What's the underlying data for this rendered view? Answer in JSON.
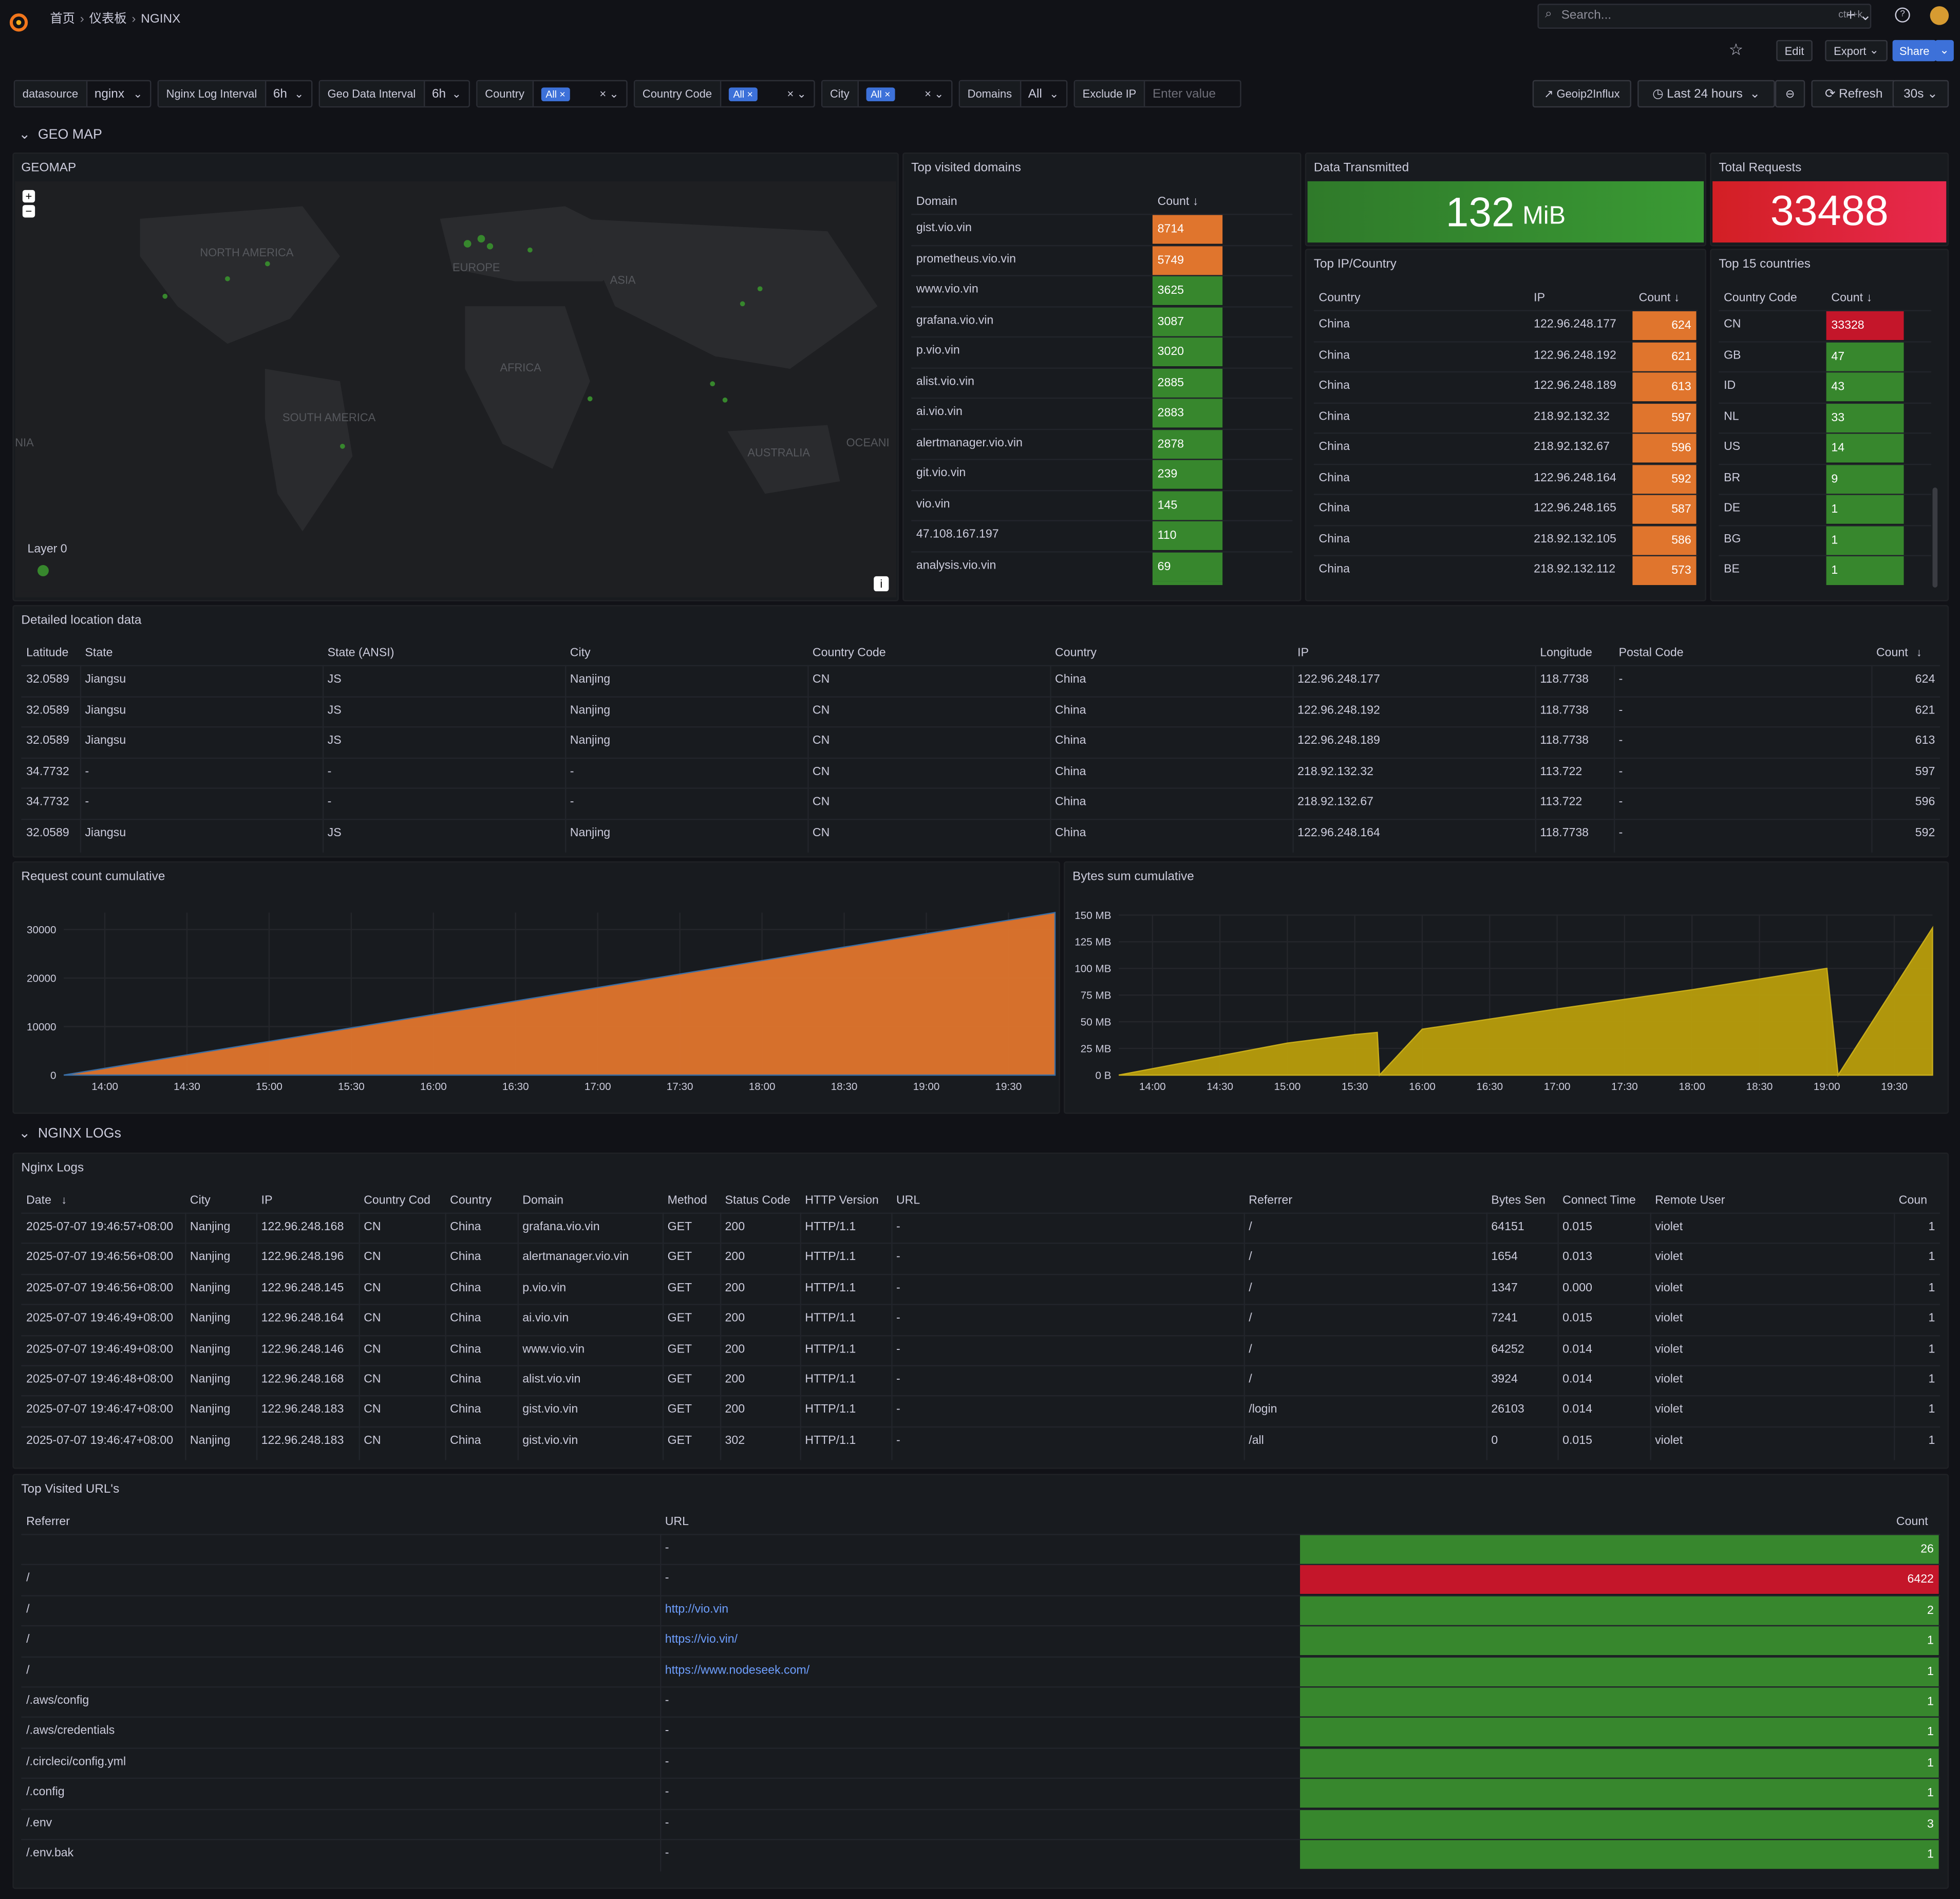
{
  "nav": {
    "crumbs": [
      "首页",
      "仪表板",
      "NGINX"
    ],
    "search_placeholder": "Search...",
    "search_shortcut": "ctrl+k",
    "edit": "Edit",
    "export": "Export",
    "share": "Share"
  },
  "vars": {
    "datasource_label": "datasource",
    "datasource_value": "nginx",
    "log_interval_label": "Nginx Log Interval",
    "log_interval_value": "6h",
    "geo_interval_label": "Geo Data Interval",
    "geo_interval_value": "6h",
    "country_label": "Country",
    "country_value": "All",
    "country_code_label": "Country Code",
    "country_code_value": "All",
    "city_label": "City",
    "city_value": "All",
    "domains_label": "Domains",
    "domains_value": "All",
    "exclude_ip_label": "Exclude IP",
    "exclude_ip_placeholder": "Enter value",
    "geoip_link": "Geoip2Influx",
    "time_range": "Last 24 hours",
    "refresh": "Refresh",
    "refresh_interval": "30s"
  },
  "rows": {
    "geo": "GEO MAP",
    "logs": "NGINX LOGs"
  },
  "geomap": {
    "title": "GEOMAP",
    "labels": [
      "NORTH AMERICA",
      "EUROPE",
      "ASIA",
      "AFRICA",
      "SOUTH AMERICA",
      "AUSTRALIA",
      "OCEANI",
      "NIA"
    ],
    "layer": "Layer 0",
    "zoom_in": "+",
    "zoom_out": "−",
    "info": "i"
  },
  "domains": {
    "title": "Top visited domains",
    "col_domain": "Domain",
    "col_count": "Count",
    "rows": [
      {
        "domain": "gist.vio.vin",
        "count": "8714",
        "color": "#e0752d"
      },
      {
        "domain": "prometheus.vio.vin",
        "count": "5749",
        "color": "#e0752d"
      },
      {
        "domain": "www.vio.vin",
        "count": "3625",
        "color": "#37872d"
      },
      {
        "domain": "grafana.vio.vin",
        "count": "3087",
        "color": "#37872d"
      },
      {
        "domain": "p.vio.vin",
        "count": "3020",
        "color": "#37872d"
      },
      {
        "domain": "alist.vio.vin",
        "count": "2885",
        "color": "#37872d"
      },
      {
        "domain": "ai.vio.vin",
        "count": "2883",
        "color": "#37872d"
      },
      {
        "domain": "alertmanager.vio.vin",
        "count": "2878",
        "color": "#37872d"
      },
      {
        "domain": "git.vio.vin",
        "count": "239",
        "color": "#37872d"
      },
      {
        "domain": "vio.vin",
        "count": "145",
        "color": "#37872d"
      },
      {
        "domain": "47.108.167.197",
        "count": "110",
        "color": "#37872d"
      },
      {
        "domain": "analysis.vio.vin",
        "count": "69",
        "color": "#37872d"
      }
    ]
  },
  "stats": {
    "data_title": "Data Transmitted",
    "data_value": "132",
    "data_unit": "MiB",
    "req_title": "Total Requests",
    "req_value": "33488"
  },
  "top_ip": {
    "title": "Top IP/Country",
    "col_country": "Country",
    "col_ip": "IP",
    "col_count": "Count",
    "rows": [
      {
        "country": "China",
        "ip": "122.96.248.177",
        "count": "624"
      },
      {
        "country": "China",
        "ip": "122.96.248.192",
        "count": "621"
      },
      {
        "country": "China",
        "ip": "122.96.248.189",
        "count": "613"
      },
      {
        "country": "China",
        "ip": "218.92.132.32",
        "count": "597"
      },
      {
        "country": "China",
        "ip": "218.92.132.67",
        "count": "596"
      },
      {
        "country": "China",
        "ip": "122.96.248.164",
        "count": "592"
      },
      {
        "country": "China",
        "ip": "122.96.248.165",
        "count": "587"
      },
      {
        "country": "China",
        "ip": "218.92.132.105",
        "count": "586"
      },
      {
        "country": "China",
        "ip": "218.92.132.112",
        "count": "573"
      }
    ]
  },
  "top_countries": {
    "title": "Top 15 countries",
    "col_code": "Country Code",
    "col_count": "Count",
    "rows": [
      {
        "code": "CN",
        "count": "33328",
        "color": "#c4162a"
      },
      {
        "code": "GB",
        "count": "47",
        "color": "#37872d"
      },
      {
        "code": "ID",
        "count": "43",
        "color": "#37872d"
      },
      {
        "code": "NL",
        "count": "33",
        "color": "#37872d"
      },
      {
        "code": "US",
        "count": "14",
        "color": "#37872d"
      },
      {
        "code": "BR",
        "count": "9",
        "color": "#37872d"
      },
      {
        "code": "DE",
        "count": "1",
        "color": "#37872d"
      },
      {
        "code": "BG",
        "count": "1",
        "color": "#37872d"
      },
      {
        "code": "BE",
        "count": "1",
        "color": "#37872d"
      }
    ]
  },
  "location": {
    "title": "Detailed location data",
    "cols": [
      "Latitude",
      "State",
      "State (ANSI)",
      "City",
      "Country Code",
      "Country",
      "IP",
      "Longitude",
      "Postal Code",
      "Count"
    ],
    "rows": [
      [
        "32.0589",
        "Jiangsu",
        "JS",
        "Nanjing",
        "CN",
        "China",
        "122.96.248.177",
        "118.7738",
        "-",
        "624"
      ],
      [
        "32.0589",
        "Jiangsu",
        "JS",
        "Nanjing",
        "CN",
        "China",
        "122.96.248.192",
        "118.7738",
        "-",
        "621"
      ],
      [
        "32.0589",
        "Jiangsu",
        "JS",
        "Nanjing",
        "CN",
        "China",
        "122.96.248.189",
        "118.7738",
        "-",
        "613"
      ],
      [
        "34.7732",
        "-",
        "-",
        "-",
        "CN",
        "China",
        "218.92.132.32",
        "113.722",
        "-",
        "597"
      ],
      [
        "34.7732",
        "-",
        "-",
        "-",
        "CN",
        "China",
        "218.92.132.67",
        "113.722",
        "-",
        "596"
      ],
      [
        "32.0589",
        "Jiangsu",
        "JS",
        "Nanjing",
        "CN",
        "China",
        "122.96.248.164",
        "118.7738",
        "-",
        "592"
      ]
    ]
  },
  "chart_data": [
    {
      "type": "area",
      "title": "Request count cumulative",
      "x_ticks": [
        "14:00",
        "14:30",
        "15:00",
        "15:30",
        "16:00",
        "16:30",
        "17:00",
        "17:30",
        "18:00",
        "18:30",
        "19:00",
        "19:30"
      ],
      "y_ticks": [
        "0",
        "10000",
        "20000",
        "30000"
      ],
      "ylim": [
        0,
        33488
      ],
      "series": [
        {
          "x": [
            "13:45",
            "19:47"
          ],
          "values": [
            0,
            33488
          ],
          "color": "#e0752d"
        }
      ]
    },
    {
      "type": "area",
      "title": "Bytes sum cumulative",
      "x_ticks": [
        "14:00",
        "14:30",
        "15:00",
        "15:30",
        "16:00",
        "16:30",
        "17:00",
        "17:30",
        "18:00",
        "18:30",
        "19:00",
        "19:30"
      ],
      "y_ticks": [
        "0 B",
        "25 MB",
        "50 MB",
        "75 MB",
        "100 MB",
        "125 MB",
        "150 MB"
      ],
      "ylim": [
        0,
        150
      ],
      "series": [
        {
          "x": [
            "13:45",
            "14:30",
            "15:00",
            "15:30",
            "15:40",
            "15:41",
            "16:00",
            "17:00",
            "18:00",
            "19:00",
            "19:05",
            "19:47"
          ],
          "values": [
            0,
            18,
            30,
            38,
            40,
            0,
            43,
            62,
            80,
            100,
            0,
            138
          ],
          "color": "#b89d0c"
        }
      ]
    }
  ],
  "logs": {
    "title": "Nginx Logs",
    "cols": [
      "Date",
      "City",
      "IP",
      "Country Cod",
      "Country",
      "Domain",
      "Method",
      "Status Code",
      "HTTP Version",
      "URL",
      "Referrer",
      "Bytes Sen",
      "Connect Time",
      "Remote User",
      "Coun"
    ],
    "rows": [
      [
        "2025-07-07 19:46:57+08:00",
        "Nanjing",
        "122.96.248.168",
        "CN",
        "China",
        "grafana.vio.vin",
        "GET",
        "200",
        "HTTP/1.1",
        "-",
        "/",
        "64151",
        "0.015",
        "violet",
        "1"
      ],
      [
        "2025-07-07 19:46:56+08:00",
        "Nanjing",
        "122.96.248.196",
        "CN",
        "China",
        "alertmanager.vio.vin",
        "GET",
        "200",
        "HTTP/1.1",
        "-",
        "/",
        "1654",
        "0.013",
        "violet",
        "1"
      ],
      [
        "2025-07-07 19:46:56+08:00",
        "Nanjing",
        "122.96.248.145",
        "CN",
        "China",
        "p.vio.vin",
        "GET",
        "200",
        "HTTP/1.1",
        "-",
        "/",
        "1347",
        "0.000",
        "violet",
        "1"
      ],
      [
        "2025-07-07 19:46:49+08:00",
        "Nanjing",
        "122.96.248.164",
        "CN",
        "China",
        "ai.vio.vin",
        "GET",
        "200",
        "HTTP/1.1",
        "-",
        "/",
        "7241",
        "0.015",
        "violet",
        "1"
      ],
      [
        "2025-07-07 19:46:49+08:00",
        "Nanjing",
        "122.96.248.146",
        "CN",
        "China",
        "www.vio.vin",
        "GET",
        "200",
        "HTTP/1.1",
        "-",
        "/",
        "64252",
        "0.014",
        "violet",
        "1"
      ],
      [
        "2025-07-07 19:46:48+08:00",
        "Nanjing",
        "122.96.248.168",
        "CN",
        "China",
        "alist.vio.vin",
        "GET",
        "200",
        "HTTP/1.1",
        "-",
        "/",
        "3924",
        "0.014",
        "violet",
        "1"
      ],
      [
        "2025-07-07 19:46:47+08:00",
        "Nanjing",
        "122.96.248.183",
        "CN",
        "China",
        "gist.vio.vin",
        "GET",
        "200",
        "HTTP/1.1",
        "-",
        "/login",
        "26103",
        "0.014",
        "violet",
        "1"
      ],
      [
        "2025-07-07 19:46:47+08:00",
        "Nanjing",
        "122.96.248.183",
        "CN",
        "China",
        "gist.vio.vin",
        "GET",
        "302",
        "HTTP/1.1",
        "-",
        "/all",
        "0",
        "0.015",
        "violet",
        "1"
      ]
    ]
  },
  "urls": {
    "title": "Top Visited URL's",
    "col_referrer": "Referrer",
    "col_url": "URL",
    "col_count": "Count",
    "rows": [
      {
        "referrer": "",
        "url": "-",
        "count": "26",
        "color": "#37872d"
      },
      {
        "referrer": "/",
        "url": "-",
        "count": "6422",
        "color": "#c4162a"
      },
      {
        "referrer": "/",
        "url": "http://vio.vin",
        "count": "2",
        "color": "#37872d"
      },
      {
        "referrer": "/",
        "url": "https://vio.vin/",
        "count": "1",
        "color": "#37872d"
      },
      {
        "referrer": "/",
        "url": "https://www.nodeseek.com/",
        "count": "1",
        "color": "#37872d"
      },
      {
        "referrer": "/.aws/config",
        "url": "-",
        "count": "1",
        "color": "#37872d"
      },
      {
        "referrer": "/.aws/credentials",
        "url": "-",
        "count": "1",
        "color": "#37872d"
      },
      {
        "referrer": "/.circleci/config.yml",
        "url": "-",
        "count": "1",
        "color": "#37872d"
      },
      {
        "referrer": "/.config",
        "url": "-",
        "count": "1",
        "color": "#37872d"
      },
      {
        "referrer": "/.env",
        "url": "-",
        "count": "3",
        "color": "#37872d"
      },
      {
        "referrer": "/.env.bak",
        "url": "-",
        "count": "1",
        "color": "#37872d"
      }
    ]
  }
}
